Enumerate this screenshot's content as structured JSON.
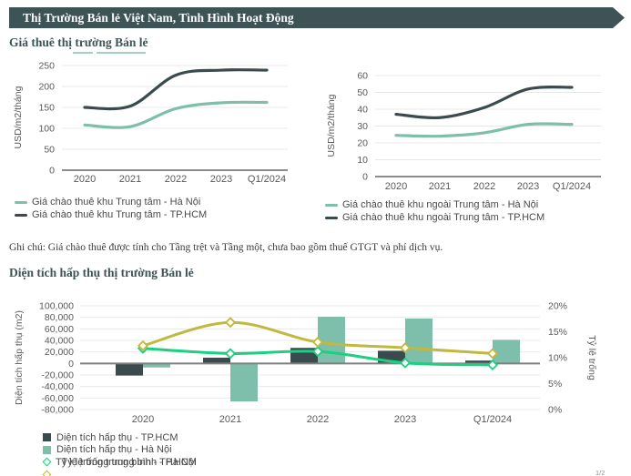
{
  "banner": {
    "title": "Thị Trường Bán lẻ Việt Nam, Tình Hình Hoạt Động",
    "bg_color": "#3D5355"
  },
  "sections": {
    "rent": {
      "title": "Giá thuê thị trường Bán lẻ"
    },
    "absorption": {
      "title": "Diện tích hấp thụ thị trường Bán lẻ"
    }
  },
  "note": "Ghi chú: Giá chào thuê được tính cho Tầng trệt và Tầng một, chưa bao gồm thuế GTGT và phí dịch vụ.",
  "corner_text": "1/2",
  "colors": {
    "accent_dark_teal": "#3D5355",
    "series_dark": "#3A4B4E",
    "series_light_green": "#7DBFAB",
    "series_yellow": "#C1B83E",
    "series_bright_green": "#1BD080",
    "gridline": "#E8E8E8",
    "axis": "#8C8C8C"
  },
  "chart_data": [
    {
      "id": "rent-cbd",
      "type": "line",
      "x": [
        "2020",
        "2021",
        "2022",
        "2023",
        "Q1/2024"
      ],
      "ylabel": "USD/m2/tháng",
      "ylim": [
        0,
        250
      ],
      "yticks": [
        0,
        50,
        100,
        150,
        200,
        250
      ],
      "grid": true,
      "legend_position": "bottom-left",
      "series": [
        {
          "name": "Giá chào thuê khu Trung tâm - Hà Nội",
          "color": "#7DBFAB",
          "values": [
            108,
            104,
            147,
            161,
            162
          ]
        },
        {
          "name": "Giá chào thuê khu Trung tâm - TP.HCM",
          "color": "#3A4B4E",
          "values": [
            150,
            153,
            227,
            239,
            239
          ]
        }
      ]
    },
    {
      "id": "rent-noncbd",
      "type": "line",
      "x": [
        "2020",
        "2021",
        "2022",
        "2023",
        "Q1/2024"
      ],
      "ylabel": "USD/m2/tháng",
      "ylim": [
        0,
        60
      ],
      "yticks": [
        0,
        10,
        20,
        30,
        40,
        50,
        60
      ],
      "grid": true,
      "legend_position": "bottom-left",
      "series": [
        {
          "name": "Giá chào thuê khu ngoài Trung tâm - Hà Nội",
          "color": "#7DBFAB",
          "values": [
            24.5,
            24,
            26,
            31,
            31
          ]
        },
        {
          "name": "Giá chào thuê khu ngoài Trung tâm - TP.HCM",
          "color": "#3A4B4E",
          "values": [
            37,
            35,
            41,
            52,
            53
          ]
        }
      ]
    },
    {
      "id": "absorption-combo",
      "type": "bar+line",
      "x": [
        "2020",
        "2021",
        "2022",
        "2023",
        "Q1/2024"
      ],
      "ylabel_left": "Diện tích hấp thụ (m2)",
      "ylabel_right": "Tỷ lệ trống",
      "ylim_left": [
        -80000,
        100000
      ],
      "yticks_left": [
        100000,
        80000,
        60000,
        40000,
        20000,
        0,
        -20000,
        -40000,
        -60000,
        -80000
      ],
      "ylim_right": [
        0,
        20
      ],
      "yticks_right": [
        20,
        15,
        10,
        5,
        0
      ],
      "grid": true,
      "legend_position": "bottom-left",
      "bar_series": [
        {
          "name": "Diện tích hấp thụ - TP.HCM",
          "color": "#3A4B4E",
          "values": [
            -21000,
            10000,
            27000,
            22000,
            5000
          ]
        },
        {
          "name": "Diện tích hấp thụ - Hà Nội",
          "color": "#7DBFAB",
          "values": [
            -7000,
            -66000,
            81000,
            78000,
            41000
          ]
        }
      ],
      "line_series": [
        {
          "name": "Tỷ lệ trống trung bình - TP.HCM",
          "color": "#1BD080",
          "marker_fill": "#FFFFFF",
          "values": [
            11.8,
            10.8,
            11.2,
            9.0,
            8.6
          ]
        },
        {
          "name": "Tỷ lệ trống trung bình - Hà Nội",
          "color": "#C1B83E",
          "marker_fill": "#FFFDEC",
          "values": [
            12.3,
            16.8,
            13.0,
            11.9,
            10.8
          ]
        }
      ]
    }
  ]
}
